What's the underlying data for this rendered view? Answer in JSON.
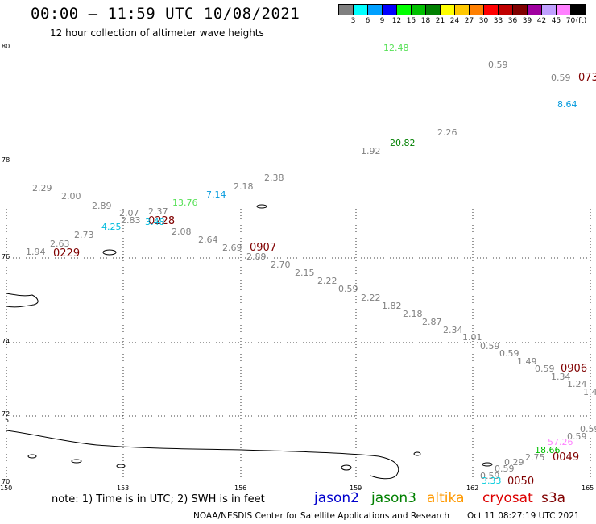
{
  "header": {
    "title": "00:00 – 11:59 UTC 10/08/2021",
    "subtitle": "12 hour collection of altimeter wave heights"
  },
  "color_scale": {
    "unit": "(ft)",
    "bins": [
      {
        "label": "3",
        "color": "#808080"
      },
      {
        "label": "6",
        "color": "#00ffff"
      },
      {
        "label": "9",
        "color": "#00a0ff"
      },
      {
        "label": "12",
        "color": "#0000ff"
      },
      {
        "label": "15",
        "color": "#00ff00"
      },
      {
        "label": "18",
        "color": "#00c000"
      },
      {
        "label": "21",
        "color": "#008000"
      },
      {
        "label": "24",
        "color": "#ffff00"
      },
      {
        "label": "27",
        "color": "#ffc800"
      },
      {
        "label": "30",
        "color": "#ff8000"
      },
      {
        "label": "33",
        "color": "#ff0000"
      },
      {
        "label": "36",
        "color": "#c00000"
      },
      {
        "label": "39",
        "color": "#800000"
      },
      {
        "label": "42",
        "color": "#a000a0"
      },
      {
        "label": "45",
        "color": "#c0a0ff"
      },
      {
        "label": "70",
        "color": "#ff80ff"
      },
      {
        "label": "",
        "color": "#000000"
      }
    ]
  },
  "axes": {
    "lat_labels": [
      "80",
      "78",
      "76",
      "74",
      "72",
      "70"
    ],
    "lon_labels": [
      "150",
      "153",
      "156",
      "159",
      "162",
      "165"
    ],
    "edge_mark": "5"
  },
  "observations": [
    {
      "text": "12.48",
      "color": "#55e055"
    },
    {
      "text": "0.59",
      "color": "#808080"
    },
    {
      "text": "0.59",
      "color": "#808080"
    },
    {
      "text": "073",
      "color": "#800000"
    },
    {
      "text": "8.64",
      "color": "#0099dd"
    },
    {
      "text": "2.26",
      "color": "#808080"
    },
    {
      "text": "20.82",
      "color": "#008000"
    },
    {
      "text": "1.92",
      "color": "#808080"
    },
    {
      "text": "2.38",
      "color": "#808080"
    },
    {
      "text": "2.29",
      "color": "#808080"
    },
    {
      "text": "2.00",
      "color": "#808080"
    },
    {
      "text": "2.18",
      "color": "#808080"
    },
    {
      "text": "7.14",
      "color": "#0099dd"
    },
    {
      "text": "13.76",
      "color": "#55e055"
    },
    {
      "text": "2.89",
      "color": "#808080"
    },
    {
      "text": "2.07",
      "color": "#808080"
    },
    {
      "text": "2.37",
      "color": "#808080"
    },
    {
      "text": "2.83",
      "color": "#808080"
    },
    {
      "text": "0228",
      "color": "#800000"
    },
    {
      "text": "4.25",
      "color": "#00bbdd"
    },
    {
      "text": "3.48",
      "color": "#00bbdd"
    },
    {
      "text": "2.08",
      "color": "#808080"
    },
    {
      "text": "2.73",
      "color": "#808080"
    },
    {
      "text": "2.64",
      "color": "#808080"
    },
    {
      "text": "2.63",
      "color": "#808080"
    },
    {
      "text": "2.69",
      "color": "#808080"
    },
    {
      "text": "0907",
      "color": "#800000"
    },
    {
      "text": "1.94",
      "color": "#808080"
    },
    {
      "text": "0229",
      "color": "#800000"
    },
    {
      "text": "2.89",
      "color": "#808080"
    },
    {
      "text": "2.70",
      "color": "#808080"
    },
    {
      "text": "2.15",
      "color": "#808080"
    },
    {
      "text": "2.22",
      "color": "#808080"
    },
    {
      "text": "0.59",
      "color": "#808080"
    },
    {
      "text": "2.22",
      "color": "#808080"
    },
    {
      "text": "1.82",
      "color": "#808080"
    },
    {
      "text": "2.18",
      "color": "#808080"
    },
    {
      "text": "2.87",
      "color": "#808080"
    },
    {
      "text": "2.34",
      "color": "#808080"
    },
    {
      "text": "1.01",
      "color": "#808080"
    },
    {
      "text": "0.59",
      "color": "#808080"
    },
    {
      "text": "0.59",
      "color": "#808080"
    },
    {
      "text": "1.49",
      "color": "#808080"
    },
    {
      "text": "0.59",
      "color": "#808080"
    },
    {
      "text": "0906",
      "color": "#800000"
    },
    {
      "text": "1.34",
      "color": "#808080"
    },
    {
      "text": "1.24",
      "color": "#808080"
    },
    {
      "text": "1.4",
      "color": "#808080"
    },
    {
      "text": "0.59",
      "color": "#808080"
    },
    {
      "text": "0.59",
      "color": "#808080"
    },
    {
      "text": "57.26",
      "color": "#ff80ff"
    },
    {
      "text": "18.66",
      "color": "#00c000"
    },
    {
      "text": "2.75",
      "color": "#808080"
    },
    {
      "text": "0049",
      "color": "#800000"
    },
    {
      "text": "0.29",
      "color": "#808080"
    },
    {
      "text": "0.59",
      "color": "#808080"
    },
    {
      "text": "0.59",
      "color": "#808080"
    },
    {
      "text": "3.33",
      "color": "#00ccdd"
    },
    {
      "text": "0050",
      "color": "#800000"
    }
  ],
  "footer": {
    "note": "note: 1) Time is in UTC; 2) SWH is in feet",
    "satellites": [
      {
        "name": "jason2",
        "color": "#0000cc"
      },
      {
        "name": "jason3",
        "color": "#008000"
      },
      {
        "name": "altika",
        "color": "#ff9900"
      },
      {
        "name": "cryosat",
        "color": "#dd0000"
      },
      {
        "name": "s3a",
        "color": "#800000"
      }
    ],
    "credit": "NOAA/NESDIS Center for Satellite Applications and Research",
    "timestamp": "Oct 11 08:27:19 UTC 2021"
  }
}
